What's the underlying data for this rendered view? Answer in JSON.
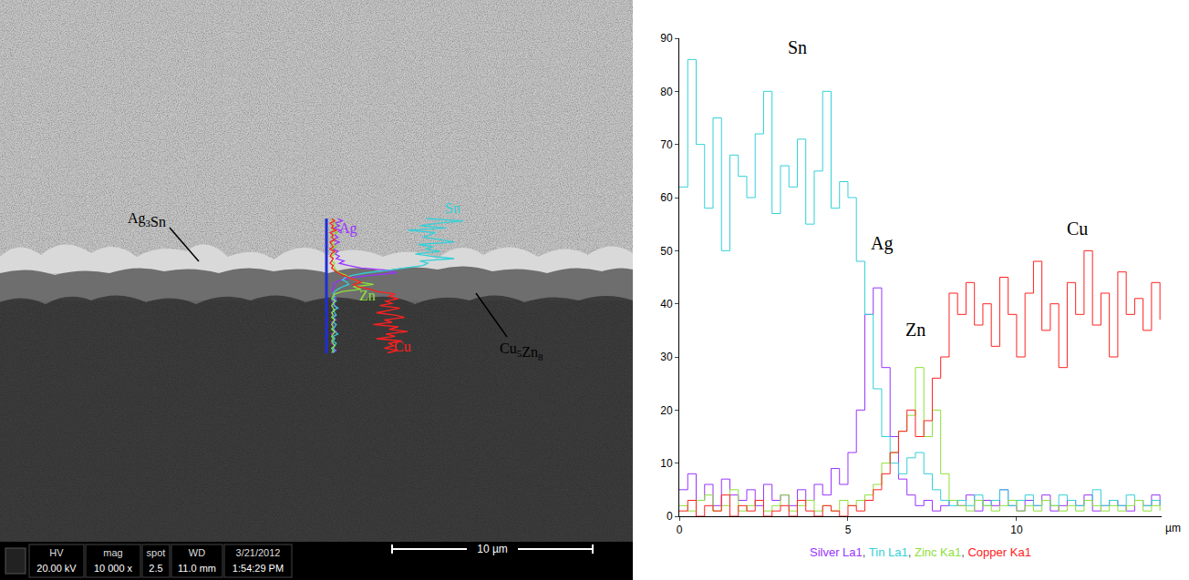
{
  "chart_data": {
    "type": "line",
    "x": [
      0,
      0.25,
      0.5,
      0.75,
      1,
      1.25,
      1.5,
      1.75,
      2,
      2.25,
      2.5,
      2.75,
      3,
      3.25,
      3.5,
      3.75,
      4,
      4.25,
      4.5,
      4.75,
      5,
      5.25,
      5.5,
      5.75,
      6,
      6.25,
      6.5,
      6.75,
      7,
      7.25,
      7.5,
      7.75,
      8,
      8.25,
      8.5,
      8.75,
      9,
      9.25,
      9.5,
      9.75,
      10,
      10.25,
      10.5,
      10.75,
      11,
      11.25,
      11.5,
      11.75,
      12,
      12.25,
      12.5,
      12.75,
      13,
      13.25,
      13.5,
      13.75,
      14,
      14.25
    ],
    "xlim": [
      0,
      14.3
    ],
    "xticks": [
      0,
      5,
      10
    ],
    "x_label": "µm",
    "ylim": [
      0,
      90
    ],
    "yticks": [
      0,
      10,
      20,
      30,
      40,
      50,
      60,
      70,
      80,
      90
    ],
    "grid": false,
    "line_style": "steps",
    "legend": "bottom",
    "legend_separator": ", ",
    "series": [
      {
        "name": "Silver La1",
        "label": "Ag",
        "color": "#9933ff",
        "values": [
          5,
          8,
          3,
          6,
          2,
          7,
          4,
          3,
          5,
          2,
          6,
          3,
          4,
          2,
          5,
          3,
          6,
          4,
          9,
          6,
          12,
          20,
          38,
          43,
          28,
          15,
          7,
          4,
          2,
          3,
          1,
          2,
          3,
          2,
          4,
          1,
          3,
          2,
          5,
          2,
          1,
          3,
          2,
          4,
          1,
          2,
          3,
          2,
          4,
          1,
          2,
          3,
          2,
          1,
          3,
          2,
          4,
          2
        ]
      },
      {
        "name": "Tin La1",
        "label": "Sn",
        "color": "#33d0d8",
        "values": [
          62,
          86,
          70,
          58,
          75,
          50,
          68,
          64,
          60,
          72,
          80,
          57,
          66,
          62,
          71,
          55,
          65,
          80,
          58,
          63,
          60,
          48,
          38,
          24,
          15,
          10,
          8,
          11,
          12,
          8,
          5,
          3,
          2,
          3,
          2,
          4,
          2,
          3,
          5,
          2,
          3,
          4,
          2,
          3,
          2,
          4,
          3,
          2,
          3,
          5,
          2,
          3,
          2,
          4,
          3,
          2,
          3,
          2
        ]
      },
      {
        "name": "Zinc Ka1",
        "label": "Zn",
        "color": "#8ee03a",
        "values": [
          2,
          1,
          3,
          4,
          1,
          2,
          5,
          1,
          2,
          3,
          1,
          2,
          4,
          1,
          2,
          3,
          1,
          2,
          1,
          3,
          2,
          3,
          4,
          6,
          10,
          12,
          16,
          19,
          28,
          15,
          20,
          8,
          3,
          2,
          1,
          3,
          2,
          1,
          2,
          3,
          1,
          2,
          1,
          3,
          2,
          1,
          2,
          1,
          3,
          2,
          1,
          2,
          1,
          2,
          3,
          1,
          2,
          1
        ]
      },
      {
        "name": "Copper Ka1",
        "label": "Cu",
        "color": "#ff2020",
        "values": [
          1,
          3,
          0,
          2,
          1,
          4,
          0,
          2,
          1,
          3,
          0,
          1,
          2,
          0,
          3,
          1,
          0,
          2,
          1,
          0,
          2,
          1,
          3,
          5,
          8,
          12,
          16,
          20,
          15,
          18,
          26,
          30,
          42,
          38,
          44,
          36,
          40,
          32,
          45,
          38,
          30,
          42,
          48,
          35,
          40,
          28,
          44,
          38,
          50,
          36,
          42,
          30,
          46,
          38,
          41,
          35,
          44,
          37
        ]
      }
    ]
  },
  "micrograph": {
    "phases": [
      "Ag3Sn",
      "Cu5Zn8"
    ],
    "info": [
      {
        "label": "HV",
        "value": "20.00 kV"
      },
      {
        "label": "mag",
        "value": "10 000 x"
      },
      {
        "label": "spot",
        "value": "2.5"
      },
      {
        "label": "WD",
        "value": "11.0 mm"
      },
      {
        "label": "3/21/2012",
        "value": "1:54:29 PM"
      }
    ],
    "scale_bar": "10 µm"
  }
}
